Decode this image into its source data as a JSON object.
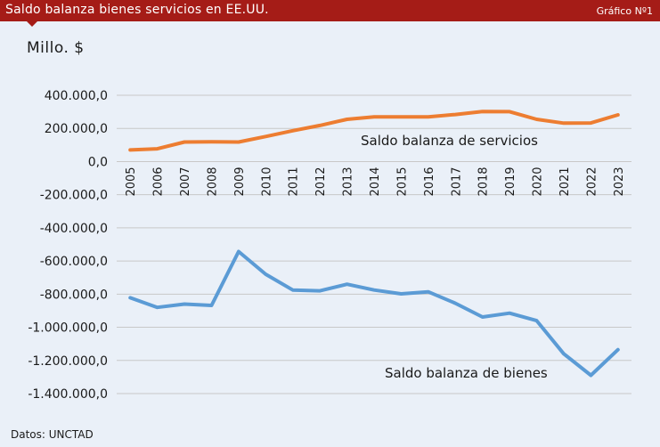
{
  "header": {
    "title": "Saldo balanza bienes servicios en EE.UU.",
    "badge": "Gráfico Nº1"
  },
  "unit_label": "Millo.  $",
  "source": "Datos: UNCTAD",
  "colors": {
    "header_bg": "#a51c17",
    "background": "#eaf0f8",
    "servicios": "#ed7d31",
    "bienes": "#5b9bd5",
    "grid": "#c8c8c8"
  },
  "chart_data": {
    "type": "line",
    "title": "Saldo balanza bienes servicios en EE.UU.",
    "ylabel": "Millo.  $",
    "xlabel": "",
    "ylim": [
      -1400000,
      400000
    ],
    "yticks": [
      400000,
      200000,
      0,
      -200000,
      -400000,
      -600000,
      -800000,
      -1000000,
      -1200000,
      -1400000
    ],
    "ytick_labels": [
      "400.000,0",
      "200.000,0",
      "0,0",
      "-200.000,0",
      "-400.000,0",
      "-600.000,0",
      "-800.000,0",
      "-1.000.000,0",
      "-1.200.000,0",
      "-1.400.000,0"
    ],
    "grid": true,
    "categories": [
      "2005",
      "2006",
      "2007",
      "2008",
      "2009",
      "2010",
      "2011",
      "2012",
      "2013",
      "2014",
      "2015",
      "2016",
      "2017",
      "2018",
      "2019",
      "2020",
      "2021",
      "2022",
      "2023"
    ],
    "series": [
      {
        "name": "Saldo balanza de servicios",
        "color": "#ed7d31",
        "values": [
          70000,
          77000,
          118000,
          119000,
          118000,
          151000,
          186000,
          218000,
          255000,
          270000,
          270000,
          270000,
          284000,
          302000,
          301000,
          255000,
          232000,
          233000,
          282000
        ]
      },
      {
        "name": "Saldo balanza de bienes",
        "color": "#5b9bd5",
        "values": [
          -822000,
          -880000,
          -860000,
          -868000,
          -543000,
          -680000,
          -775000,
          -780000,
          -740000,
          -775000,
          -798000,
          -786000,
          -855000,
          -938000,
          -915000,
          -960000,
          -1160000,
          -1290000,
          -1135000
        ]
      }
    ]
  }
}
